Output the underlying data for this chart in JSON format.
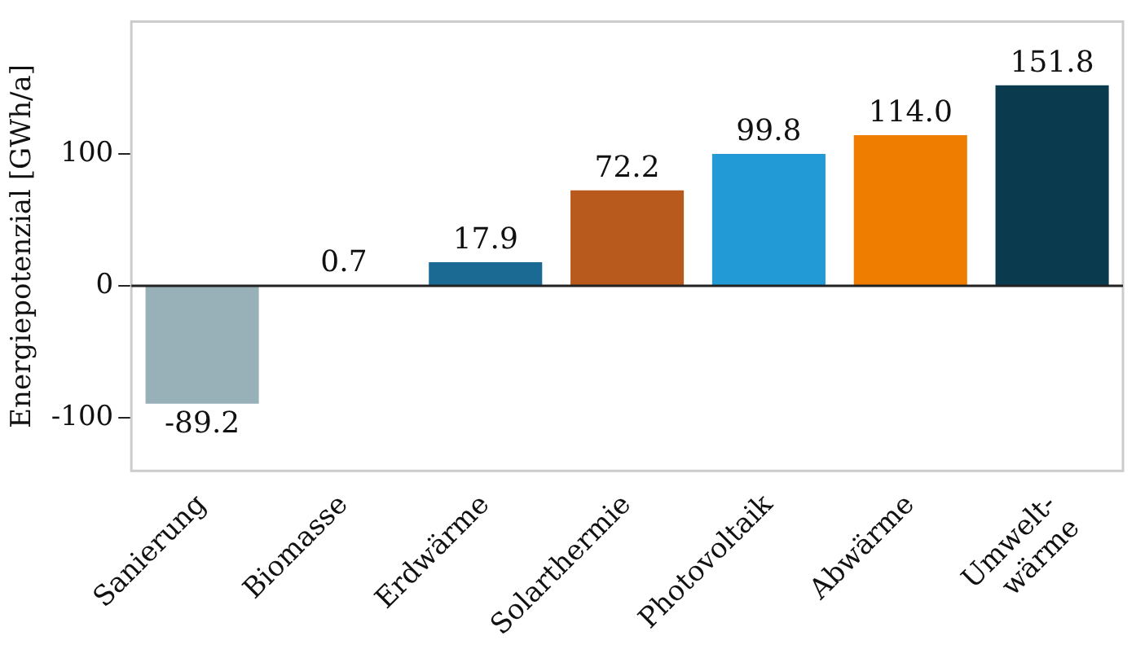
{
  "chart_data": {
    "type": "bar",
    "ylabel": "Energiepotenzial [GWh/a]",
    "categories": [
      "Sanierung",
      "Biomasse",
      "Erdwärme",
      "Solarthermie",
      "Photovoltaik",
      "Abwärme",
      "Umwelt-\nwärme"
    ],
    "values": [
      -89.2,
      0.7,
      17.9,
      72.2,
      99.8,
      114.0,
      151.8
    ],
    "colors": [
      "#98b0b8",
      "#4f7f3a",
      "#1a6a94",
      "#b85a1e",
      "#229ad6",
      "#ef7d00",
      "#0a3a4e"
    ],
    "ylim": [
      -140,
      200
    ],
    "yticks": [
      -100,
      0,
      100
    ],
    "ref_lines": [
      {
        "axis": "y",
        "value": 0,
        "color": "#222222"
      }
    ],
    "value_labels": [
      "-89.2",
      "0.7",
      "17.9",
      "72.2",
      "99.8",
      "114.0",
      "151.8"
    ],
    "grid": false,
    "legend": false
  }
}
